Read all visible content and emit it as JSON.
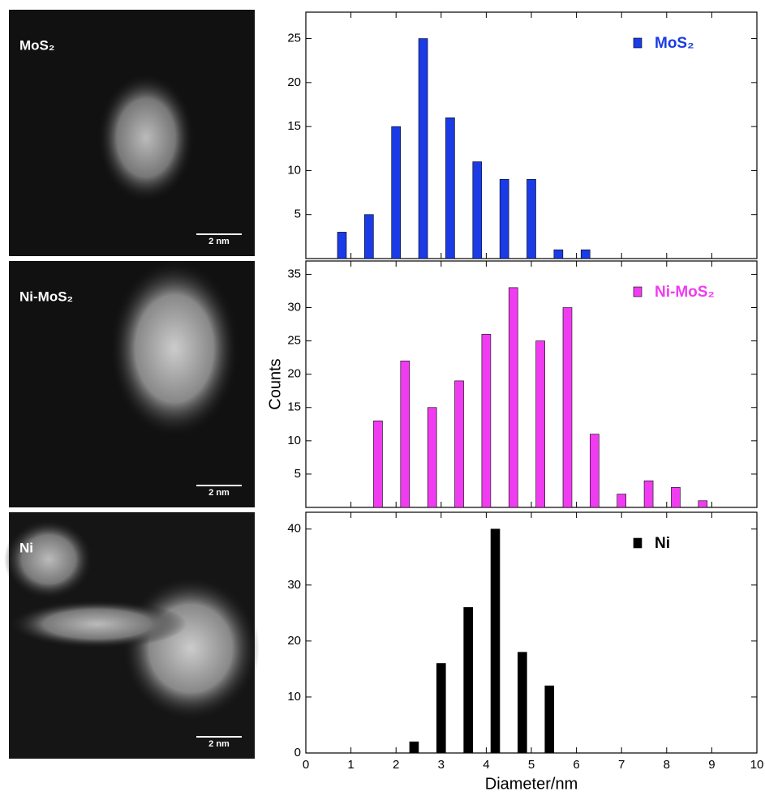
{
  "images": [
    {
      "label": "MoS₂",
      "scale_bar": "2 nm"
    },
    {
      "label": "Ni-MoS₂",
      "scale_bar": "2 nm"
    },
    {
      "label": "Ni",
      "scale_bar": "2 nm"
    }
  ],
  "chart_data": [
    {
      "type": "bar",
      "x": [
        0.8,
        1.4,
        2.0,
        2.6,
        3.2,
        3.8,
        4.4,
        5.0,
        5.6,
        6.2
      ],
      "series": [
        {
          "name": "MoS₂",
          "color": "#1a3be6",
          "values": [
            3,
            5,
            15,
            25,
            16,
            11,
            9,
            9,
            1,
            1
          ]
        }
      ],
      "ylim": [
        0,
        28
      ],
      "yticks": [
        5,
        10,
        15,
        20,
        25
      ]
    },
    {
      "type": "bar",
      "ylabel": "Counts",
      "x": [
        1.6,
        2.2,
        2.8,
        3.4,
        4.0,
        4.6,
        5.2,
        5.8,
        6.4,
        7.0,
        7.6,
        8.2,
        8.8
      ],
      "series": [
        {
          "name": "Ni-MoS₂",
          "color": "#f03cf0",
          "values": [
            13,
            22,
            15,
            19,
            26,
            33,
            25,
            30,
            11,
            2,
            4,
            3,
            1
          ]
        }
      ],
      "ylim": [
        0,
        37
      ],
      "yticks": [
        5,
        10,
        15,
        20,
        25,
        30,
        35
      ]
    },
    {
      "type": "bar",
      "xlabel": "Diameter/nm",
      "x": [
        2.4,
        3.0,
        3.6,
        4.2,
        4.8,
        5.4
      ],
      "series": [
        {
          "name": "Ni",
          "color": "#000000",
          "values": [
            2,
            16,
            26,
            40,
            18,
            12
          ]
        }
      ],
      "ylim": [
        0,
        43
      ],
      "yticks": [
        0,
        10,
        20,
        30,
        40
      ],
      "xlim": [
        0,
        10
      ],
      "xticks": [
        0,
        1,
        2,
        3,
        4,
        5,
        6,
        7,
        8,
        9,
        10
      ]
    }
  ]
}
